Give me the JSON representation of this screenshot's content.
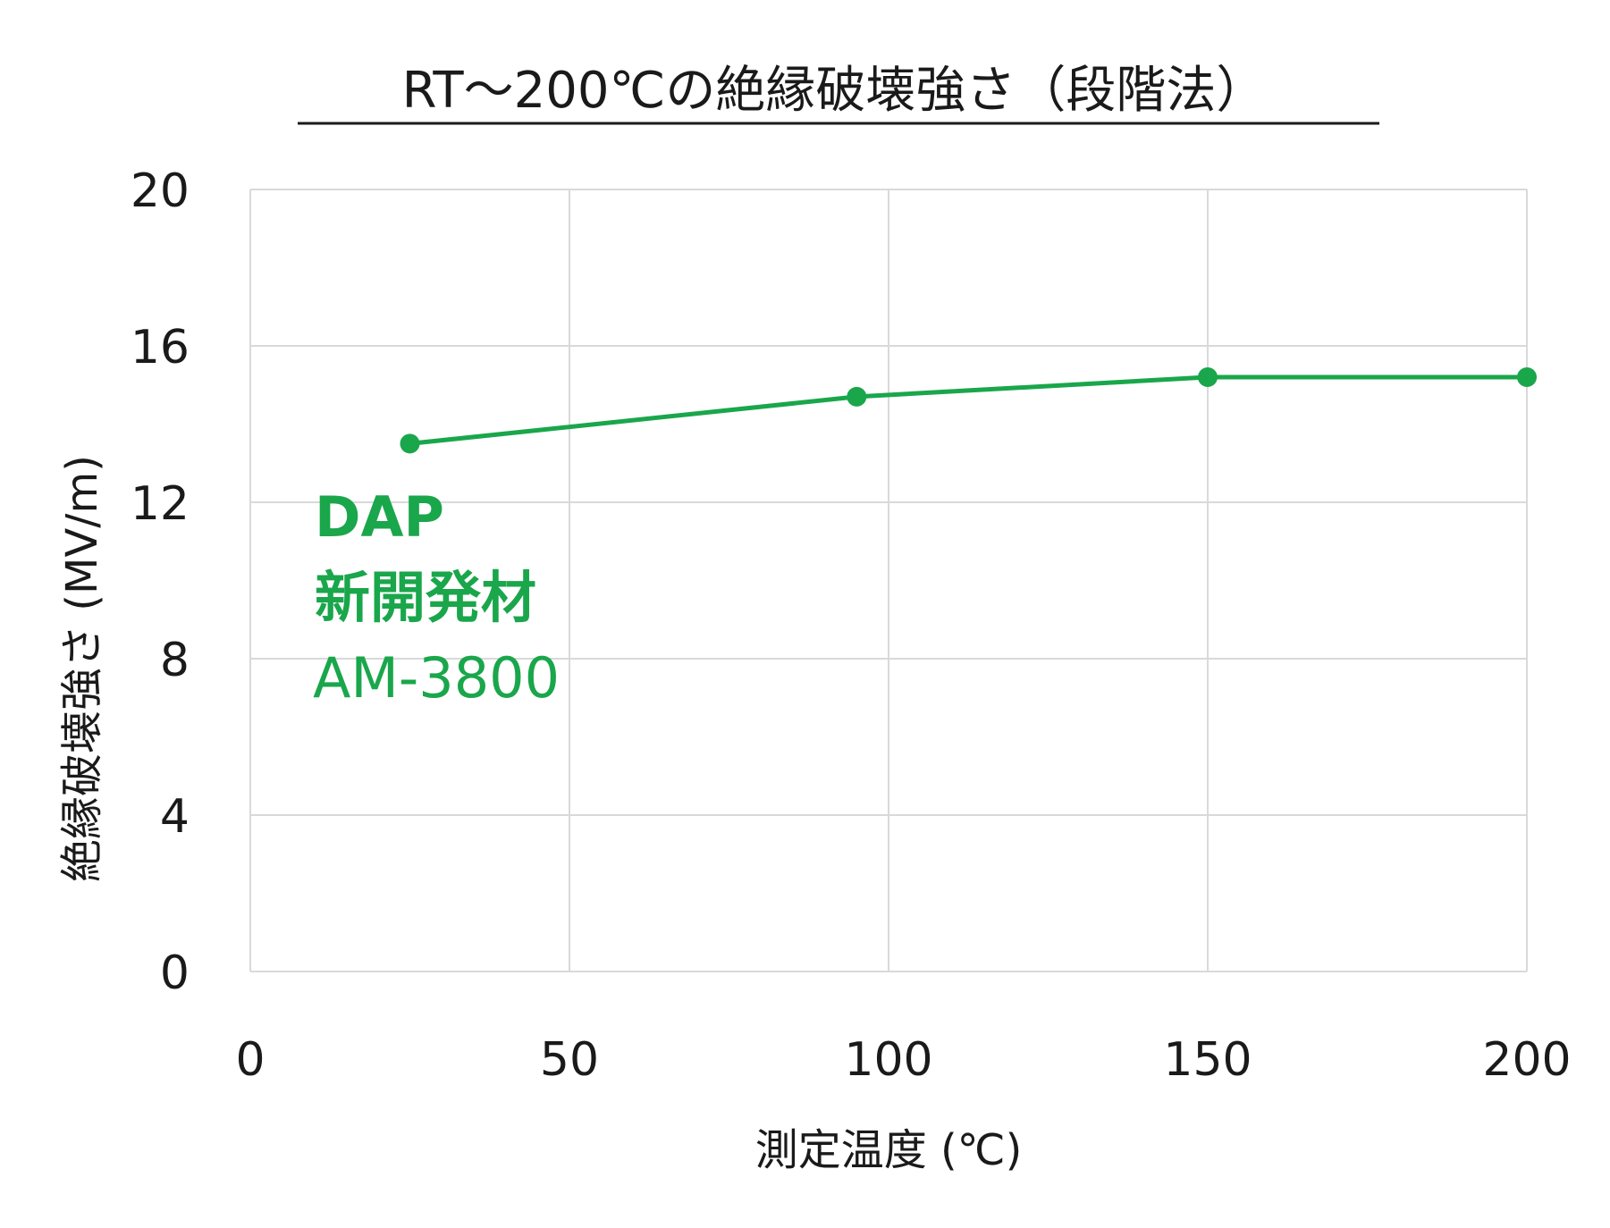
{
  "chart_data": {
    "type": "line",
    "title": "RT～200℃の絶縁破壊強さ（段階法）",
    "xlabel": "測定温度 (℃)",
    "ylabel": "絶縁破壊強さ (MV/m)",
    "xlim": [
      0,
      200
    ],
    "ylim": [
      0,
      20
    ],
    "xticks": [
      0,
      50,
      100,
      150,
      200
    ],
    "yticks": [
      0,
      4,
      8,
      12,
      16,
      20
    ],
    "grid": true,
    "series": [
      {
        "color": "#1aa64b",
        "x": [
          25,
          95,
          150,
          200
        ],
        "y": [
          13.5,
          14.7,
          15.2,
          15.2
        ]
      }
    ],
    "annotations": [
      "DAP",
      "新開発材",
      "AM-3800"
    ]
  }
}
